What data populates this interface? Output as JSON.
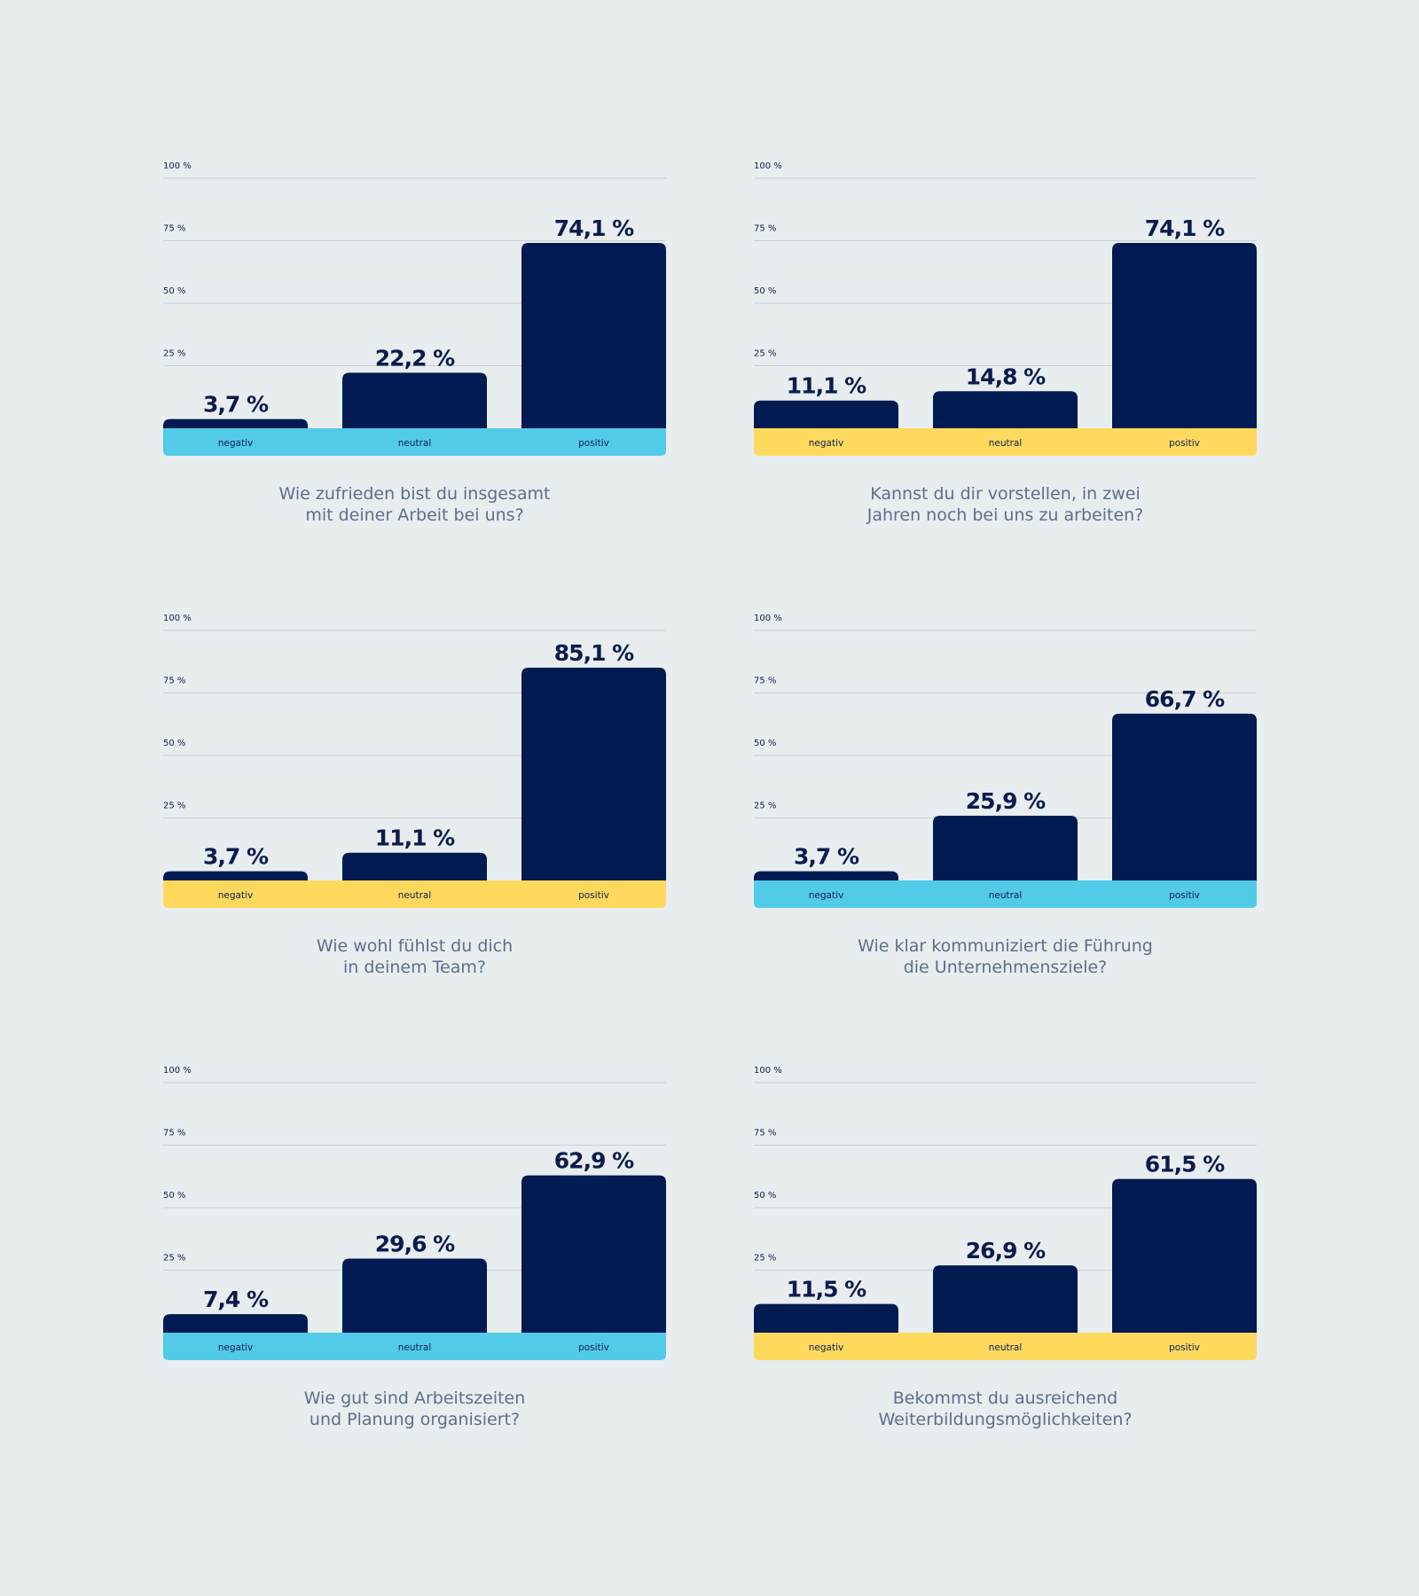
{
  "colors": {
    "background": "#e8edef",
    "bar": "#001a52",
    "grid": "#c7cfd7",
    "accent_cyan": "#52cbe8",
    "accent_yellow": "#ffd95e"
  },
  "chart_data": [
    {
      "type": "bar",
      "categories": [
        "negativ",
        "neutral",
        "positiv"
      ],
      "values": [
        3.7,
        22.2,
        74.1
      ],
      "value_labels": [
        "3,7 %",
        "22,2 %",
        "74,1 %"
      ],
      "yticks": [
        "25 %",
        "50 %",
        "75 %",
        "100 %"
      ],
      "ylim": [
        0,
        100
      ],
      "band_color": "cyan",
      "question": [
        "Wie zufrieden bist du insgesamt",
        "mit deiner Arbeit bei uns?"
      ]
    },
    {
      "type": "bar",
      "categories": [
        "negativ",
        "neutral",
        "positiv"
      ],
      "values": [
        11.1,
        14.8,
        74.1
      ],
      "value_labels": [
        "11,1 %",
        "14,8 %",
        "74,1 %"
      ],
      "yticks": [
        "25 %",
        "50 %",
        "75 %",
        "100 %"
      ],
      "ylim": [
        0,
        100
      ],
      "band_color": "yellow",
      "question": [
        "Kannst du dir vorstellen, in zwei",
        "Jahren noch bei uns zu arbeiten?"
      ]
    },
    {
      "type": "bar",
      "categories": [
        "negativ",
        "neutral",
        "positiv"
      ],
      "values": [
        3.7,
        11.1,
        85.1
      ],
      "value_labels": [
        "3,7 %",
        "11,1 %",
        "85,1 %"
      ],
      "yticks": [
        "25 %",
        "50 %",
        "75 %",
        "100 %"
      ],
      "ylim": [
        0,
        100
      ],
      "band_color": "yellow",
      "question": [
        "Wie wohl fühlst du dich",
        "in deinem Team?"
      ]
    },
    {
      "type": "bar",
      "categories": [
        "negativ",
        "neutral",
        "positiv"
      ],
      "values": [
        3.7,
        25.9,
        66.7
      ],
      "value_labels": [
        "3,7 %",
        "25,9 %",
        "66,7 %"
      ],
      "yticks": [
        "25 %",
        "50 %",
        "75 %",
        "100 %"
      ],
      "ylim": [
        0,
        100
      ],
      "band_color": "cyan",
      "question": [
        "Wie klar kommuniziert die Führung",
        "die Unternehmensziele?"
      ]
    },
    {
      "type": "bar",
      "categories": [
        "negativ",
        "neutral",
        "positiv"
      ],
      "values": [
        7.4,
        29.6,
        62.9
      ],
      "value_labels": [
        "7,4 %",
        "29,6 %",
        "62,9 %"
      ],
      "yticks": [
        "25 %",
        "50 %",
        "75 %",
        "100 %"
      ],
      "ylim": [
        0,
        100
      ],
      "band_color": "cyan",
      "question": [
        "Wie gut sind Arbeitszeiten",
        "und Planung organisiert?"
      ]
    },
    {
      "type": "bar",
      "categories": [
        "negativ",
        "neutral",
        "positiv"
      ],
      "values": [
        11.5,
        26.9,
        61.5
      ],
      "value_labels": [
        "11,5 %",
        "26,9 %",
        "61,5 %"
      ],
      "yticks": [
        "25 %",
        "50 %",
        "75 %",
        "100 %"
      ],
      "ylim": [
        0,
        100
      ],
      "band_color": "yellow",
      "question": [
        "Bekommst du ausreichend",
        "Weiterbildungsmöglichkeiten?"
      ]
    }
  ]
}
